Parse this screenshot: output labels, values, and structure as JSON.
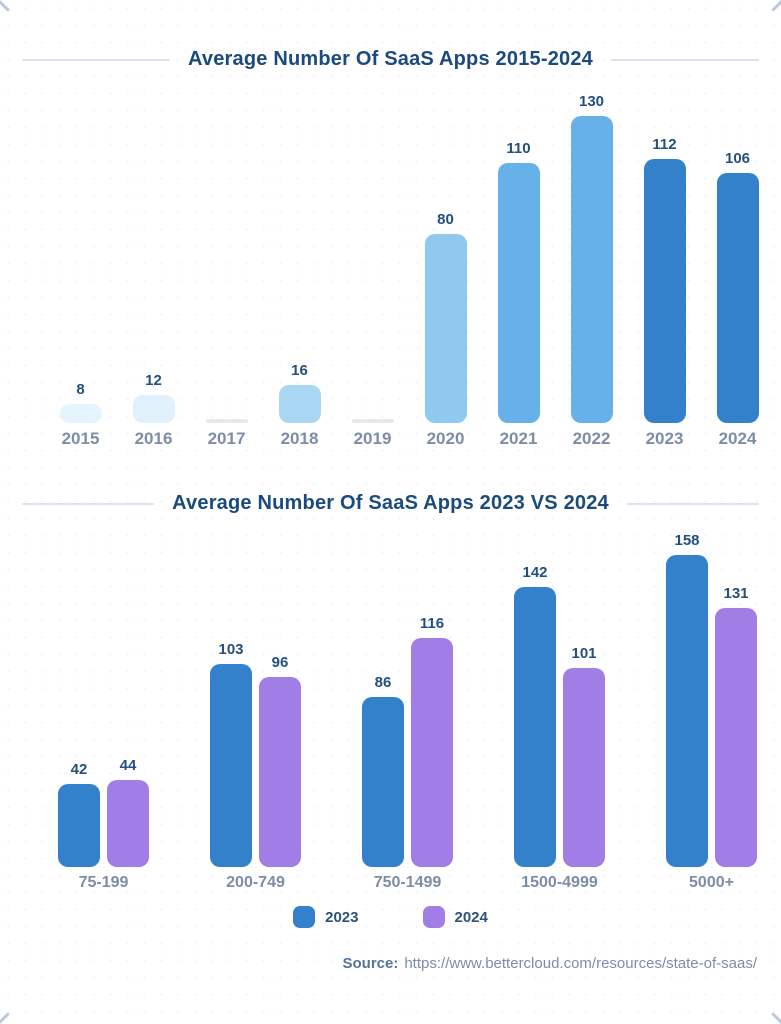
{
  "chart_data": [
    {
      "type": "bar",
      "title": "Average Number Of SaaS Apps 2015-2024",
      "categories": [
        "2015",
        "2016",
        "2017",
        "2018",
        "2019",
        "2020",
        "2021",
        "2022",
        "2023",
        "2024"
      ],
      "values": [
        8,
        12,
        null,
        16,
        null,
        80,
        110,
        130,
        112,
        106
      ],
      "bar_colors": [
        "#e6f4fd",
        "#e0f1fc",
        "#e8e9ed",
        "#a9d6f2",
        "#e8e9ed",
        "#8fc9f0",
        "#66b1e9",
        "#66b1e9",
        "#3381cb",
        "#3381cb"
      ],
      "missing_value_bar_color": "#e8e9ed",
      "xlabel": "",
      "ylabel": "",
      "ylim": [
        0,
        130
      ],
      "grid": false,
      "value_labels_shown": true
    },
    {
      "type": "bar",
      "title": "Average Number Of SaaS Apps 2023 VS 2024",
      "categories": [
        "75-199",
        "200-749",
        "750-1499",
        "1500-4999",
        "5000+"
      ],
      "series": [
        {
          "name": "2023",
          "color": "#3381cb",
          "values": [
            42,
            103,
            86,
            142,
            158
          ]
        },
        {
          "name": "2024",
          "color": "#a07ee6",
          "values": [
            44,
            96,
            116,
            101,
            131
          ]
        }
      ],
      "xlabel": "",
      "ylabel": "",
      "ylim": [
        0,
        158
      ],
      "grid": false,
      "legend_position": "bottom",
      "value_labels_shown": true
    }
  ],
  "source": {
    "label": "Source:",
    "url": "https://www.bettercloud.com/resources/state-of-saas/"
  },
  "colors": {
    "title_navy": "#1b4b7e",
    "value_label_navy": "#24507e",
    "axis_label_gray_blue": "#7d8da6",
    "divider": "#dbe3ee",
    "corner_mark": "#bcc8e0"
  }
}
